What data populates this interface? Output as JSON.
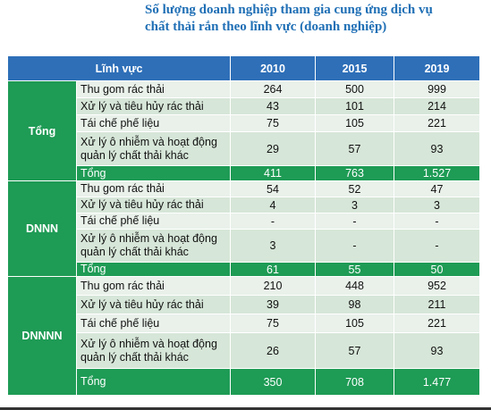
{
  "title": {
    "line1": "Số lượng doanh nghiệp tham gia cung ứng dịch vụ",
    "line2": "chất thải rắn theo lĩnh vực (doanh nghiệp)"
  },
  "table": {
    "headers": [
      "Lĩnh vực",
      "2010",
      "2015",
      "2019"
    ],
    "groups": [
      {
        "name": "Tổng",
        "rows": [
          {
            "field": "Thu gom rác thải",
            "v2010": "264",
            "v2015": "500",
            "v2019": "999"
          },
          {
            "field": "Xử lý và tiêu hủy rác thải",
            "v2010": "43",
            "v2015": "101",
            "v2019": "214"
          },
          {
            "field": "Tái chế phế liệu",
            "v2010": "75",
            "v2015": "105",
            "v2019": "221"
          },
          {
            "field": "Xử lý ô nhiễm và hoạt động quản lý chất thải khác",
            "v2010": "29",
            "v2015": "57",
            "v2019": "93"
          }
        ],
        "total": {
          "label": "Tổng",
          "v2010": "411",
          "v2015": "763",
          "v2019": "1.527"
        }
      },
      {
        "name": "DNNN",
        "rows": [
          {
            "field": "Thu gom rác thải",
            "v2010": "54",
            "v2015": "52",
            "v2019": "47"
          },
          {
            "field": "Xử lý và tiêu hủy rác thải",
            "v2010": "4",
            "v2015": "3",
            "v2019": "3"
          },
          {
            "field": "Tái chế phế liệu",
            "v2010": "-",
            "v2015": "-",
            "v2019": "-"
          },
          {
            "field": "Xử lý ô nhiễm và hoạt động quản lý chất thải khác",
            "v2010": "3",
            "v2015": "-",
            "v2019": "-"
          }
        ],
        "total": {
          "label": "Tổng",
          "v2010": "61",
          "v2015": "55",
          "v2019": "50"
        }
      },
      {
        "name": "DNNNN",
        "rows": [
          {
            "field": "Thu gom rác thải",
            "v2010": "210",
            "v2015": "448",
            "v2019": "952"
          },
          {
            "field": "Xử lý và tiêu hủy rác thải",
            "v2010": "39",
            "v2015": "98",
            "v2019": "211"
          },
          {
            "field": "Tái chế phế liệu",
            "v2010": "75",
            "v2015": "105",
            "v2019": "221"
          },
          {
            "field": "Xử lý ô nhiễm và hoạt động quản lý chất thải khác",
            "v2010": "26",
            "v2015": "57",
            "v2019": "93"
          }
        ],
        "total": {
          "label": "Tổng",
          "v2010": "350",
          "v2015": "708",
          "v2019": "1.477"
        }
      }
    ]
  }
}
